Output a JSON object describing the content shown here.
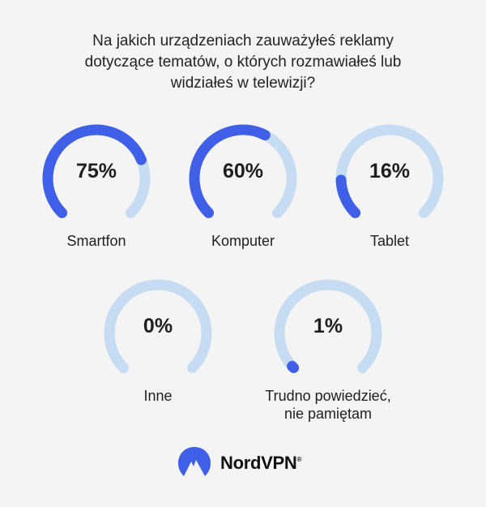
{
  "question": {
    "line1": "Na jakich urządzeniach zauważyłeś reklamy",
    "line2": "dotyczące tematów, o których rozmawiałeś lub",
    "line3": "widziałeś w telewizji?"
  },
  "chart_data": {
    "type": "gauge",
    "categories": [
      "Smartfon",
      "Komputer",
      "Tablet",
      "Inne",
      "Trudno powiedzieć, nie pamiętam"
    ],
    "values": [
      75,
      60,
      16,
      0,
      1
    ],
    "unit": "%",
    "items": [
      {
        "label_lines": [
          "Smartfon"
        ],
        "value": 75,
        "value_label": "75%"
      },
      {
        "label_lines": [
          "Komputer"
        ],
        "value": 60,
        "value_label": "60%"
      },
      {
        "label_lines": [
          "Tablet"
        ],
        "value": 16,
        "value_label": "16%"
      },
      {
        "label_lines": [
          "Inne"
        ],
        "value": 0,
        "value_label": "0%"
      },
      {
        "label_lines": [
          "Trudno powiedzieć,",
          "nie pamiętam"
        ],
        "value": 1,
        "value_label": "1%"
      }
    ],
    "colors": {
      "fill": "#3f5fe8",
      "track": "#c5dcf2"
    }
  },
  "brand": {
    "name": "NordVPN",
    "trademark": "®",
    "icon": "nordvpn-mountain-icon",
    "color": "#3f5fe8"
  }
}
